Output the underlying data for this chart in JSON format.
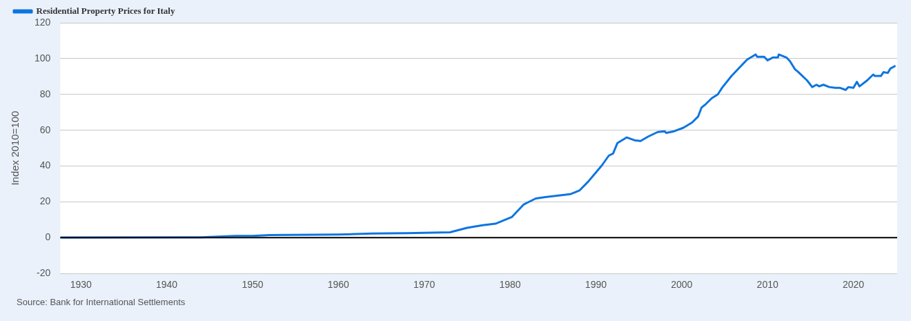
{
  "chart_data": {
    "type": "line",
    "ylabel": "Index 2010=100",
    "annotations": [
      "Source: Bank for International Settlements"
    ],
    "x": [
      1927.6,
      1944,
      1948,
      1950,
      1952,
      1960,
      1964,
      1968,
      1973,
      1975,
      1976.8,
      1978.3,
      1980.2,
      1981.6,
      1983,
      1984.1,
      1987,
      1988.1,
      1989.1,
      1990.7,
      1991.5,
      1992,
      1992.5,
      1993.6,
      1994.5,
      1995.2,
      1996.1,
      1997.2,
      1998,
      1998.2,
      1999.1,
      2000.2,
      2001.2,
      2001.9,
      2002.3,
      2002.8,
      2003.5,
      2004.2,
      2004.7,
      2005.8,
      2006.6,
      2007.6,
      2008.6,
      2008.8,
      2009.6,
      2010,
      2010.6,
      2011.2,
      2011.3,
      2012.2,
      2012.6,
      2013.2,
      2013.6,
      2014.6,
      2015.2,
      2015.7,
      2016,
      2016.5,
      2017.2,
      2017.9,
      2018.4,
      2019.1,
      2019.4,
      2020,
      2020.4,
      2020.7,
      2021.6,
      2022.3,
      2022.5,
      2023.2,
      2023.5,
      2024,
      2024.3,
      2024.9
    ],
    "series": [
      {
        "name": "Residential Property Prices for Italy",
        "color": "#0d75e0",
        "values": [
          0.1,
          0.2,
          1,
          1,
          1.5,
          1.8,
          2.3,
          2.5,
          3,
          5.5,
          7,
          7.8,
          11.5,
          18.6,
          21.9,
          22.7,
          24.3,
          26.4,
          31.3,
          40.4,
          45.8,
          47,
          52.8,
          56,
          54.4,
          54,
          56.5,
          59,
          59.4,
          58.5,
          59.4,
          61.4,
          64.3,
          67.6,
          72.6,
          74.6,
          77.9,
          80,
          83.7,
          90.3,
          94.4,
          99.4,
          102.3,
          101,
          101,
          99,
          100.6,
          100.6,
          102.3,
          100.6,
          98.6,
          94,
          92.4,
          87.8,
          84.1,
          85.4,
          84.5,
          85.4,
          84.1,
          83.7,
          83.7,
          82.5,
          84.1,
          83.7,
          87,
          84.5,
          87.8,
          91.1,
          90.3,
          90.3,
          92.4,
          92,
          94.4,
          96
        ]
      }
    ],
    "xlim": [
      1927.6,
      2025.1
    ],
    "xticks": [
      1930,
      1940,
      1950,
      1960,
      1970,
      1980,
      1990,
      2000,
      2010,
      2020
    ],
    "ylim": [
      -20,
      120
    ],
    "yticks": [
      -20,
      0,
      20,
      40,
      60,
      80,
      100,
      120
    ],
    "ref_lines": [
      {
        "axis": "y",
        "value": 0,
        "color": "#000000"
      }
    ],
    "grid": "y",
    "legend": "top left"
  }
}
